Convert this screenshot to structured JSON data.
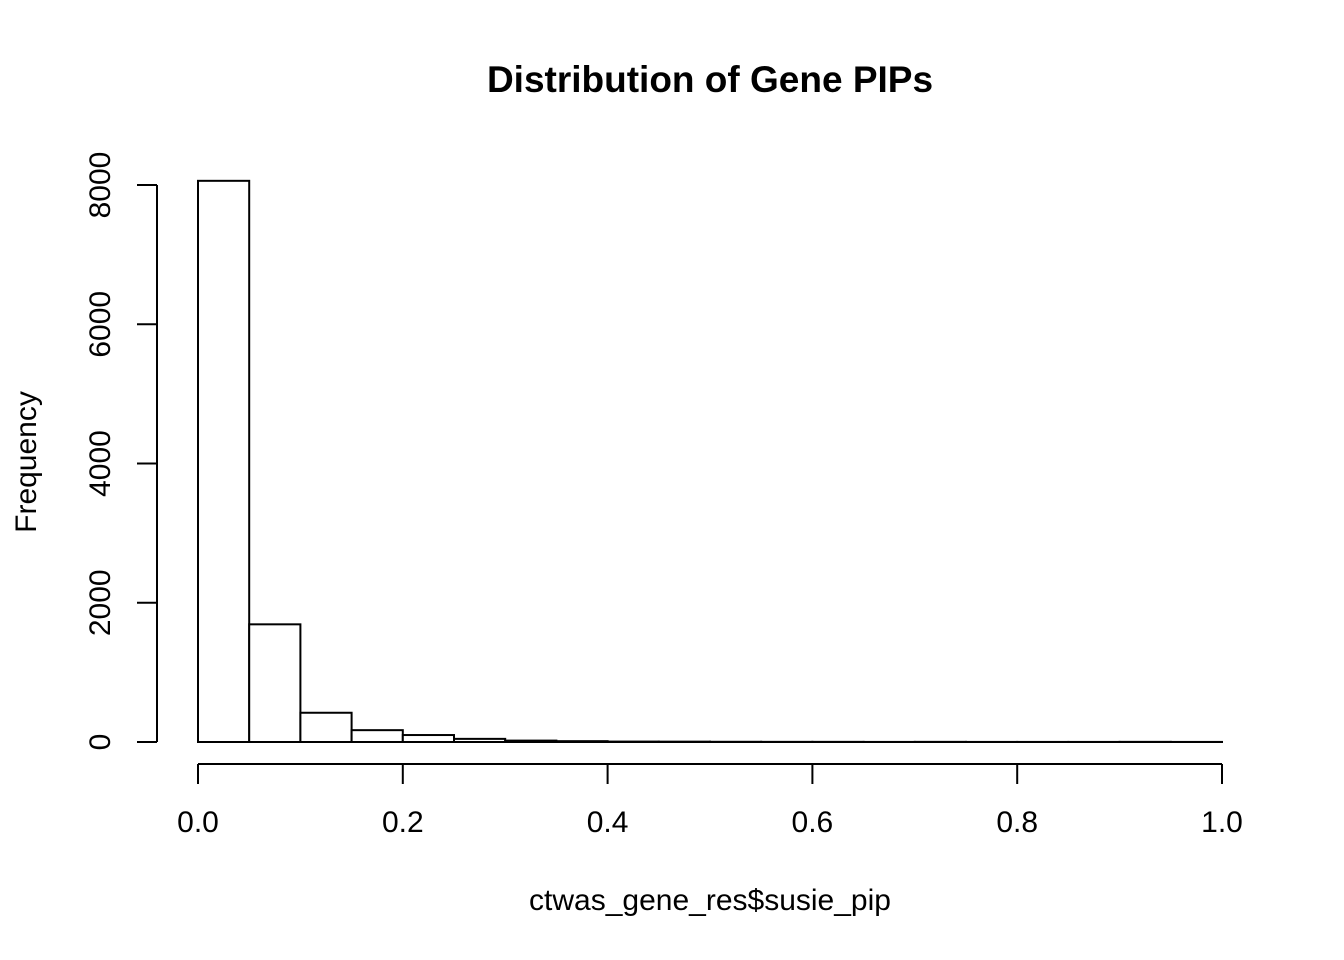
{
  "chart_data": {
    "type": "bar",
    "title": "Distribution of Gene PIPs",
    "xlabel": "ctwas_gene_res$susie_pip",
    "ylabel": "Frequency",
    "xlim": [
      0,
      1
    ],
    "ylim": [
      0,
      8000
    ],
    "x_ticks": [
      0.0,
      0.2,
      0.4,
      0.6,
      0.8,
      1.0
    ],
    "x_tick_labels": [
      "0.0",
      "0.2",
      "0.4",
      "0.6",
      "0.8",
      "1.0"
    ],
    "y_ticks": [
      0,
      2000,
      4000,
      6000,
      8000
    ],
    "y_tick_labels": [
      "0",
      "2000",
      "4000",
      "6000",
      "8000"
    ],
    "bin_width": 0.05,
    "bins": [
      {
        "start": 0.0,
        "end": 0.05,
        "count": 8060
      },
      {
        "start": 0.05,
        "end": 0.1,
        "count": 1690
      },
      {
        "start": 0.1,
        "end": 0.15,
        "count": 420
      },
      {
        "start": 0.15,
        "end": 0.2,
        "count": 170
      },
      {
        "start": 0.2,
        "end": 0.25,
        "count": 100
      },
      {
        "start": 0.25,
        "end": 0.3,
        "count": 45
      },
      {
        "start": 0.3,
        "end": 0.35,
        "count": 20
      },
      {
        "start": 0.35,
        "end": 0.4,
        "count": 12
      },
      {
        "start": 0.4,
        "end": 0.45,
        "count": 6
      },
      {
        "start": 0.45,
        "end": 0.5,
        "count": 5
      },
      {
        "start": 0.5,
        "end": 0.55,
        "count": 3
      },
      {
        "start": 0.55,
        "end": 0.6,
        "count": 2
      },
      {
        "start": 0.6,
        "end": 0.65,
        "count": 2
      },
      {
        "start": 0.65,
        "end": 0.7,
        "count": 1
      },
      {
        "start": 0.7,
        "end": 0.75,
        "count": 2
      },
      {
        "start": 0.75,
        "end": 0.8,
        "count": 1
      },
      {
        "start": 0.8,
        "end": 0.85,
        "count": 1
      },
      {
        "start": 0.85,
        "end": 0.9,
        "count": 1
      },
      {
        "start": 0.9,
        "end": 0.95,
        "count": 2
      },
      {
        "start": 0.95,
        "end": 1.0,
        "count": 1
      }
    ],
    "grid": false,
    "legend": "none"
  }
}
